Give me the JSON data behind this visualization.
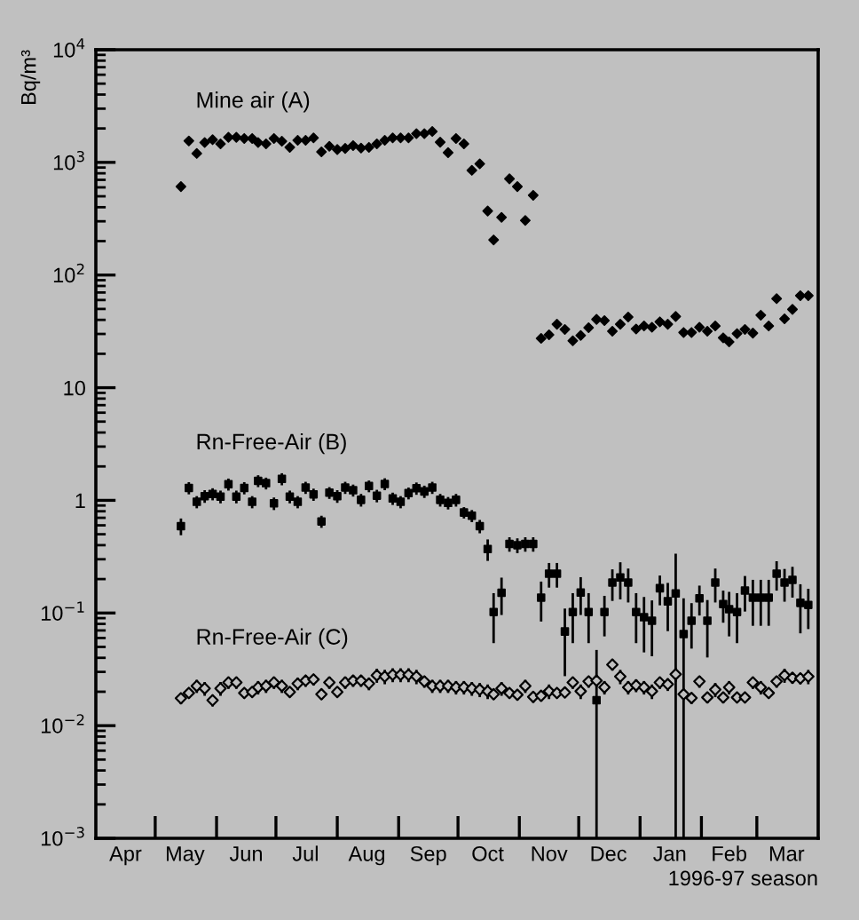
{
  "chart_data": {
    "type": "scatter",
    "xlabel": "1996-97 season",
    "ylabel": "Bq/m³",
    "log": "y",
    "x": [
      "1996-05-14",
      "1996-05-18",
      "1996-05-22",
      "1996-05-26",
      "1996-05-30",
      "1996-06-03",
      "1996-06-07",
      "1996-06-11",
      "1996-06-15",
      "1996-06-19",
      "1996-06-22",
      "1996-06-26",
      "1996-06-30",
      "1996-07-04",
      "1996-07-08",
      "1996-07-12",
      "1996-07-16",
      "1996-07-20",
      "1996-07-24",
      "1996-07-28",
      "1996-08-01",
      "1996-08-05",
      "1996-08-09",
      "1996-08-13",
      "1996-08-17",
      "1996-08-21",
      "1996-08-25",
      "1996-08-29",
      "1996-09-02",
      "1996-09-06",
      "1996-09-10",
      "1996-09-14",
      "1996-09-18",
      "1996-09-22",
      "1996-09-26",
      "1996-09-30",
      "1996-10-04",
      "1996-10-08",
      "1996-10-12",
      "1996-10-16",
      "1996-10-19",
      "1996-10-23",
      "1996-10-27",
      "1996-10-31",
      "1996-11-04",
      "1996-11-08",
      "1996-11-12",
      "1996-11-16",
      "1996-11-20",
      "1996-11-24",
      "1996-11-28",
      "1996-12-02",
      "1996-12-06",
      "1996-12-10",
      "1996-12-14",
      "1996-12-18",
      "1996-12-22",
      "1996-12-26",
      "1996-12-30",
      "1997-01-03",
      "1997-01-07",
      "1997-01-11",
      "1997-01-15",
      "1997-01-19",
      "1997-01-23",
      "1997-01-27",
      "1997-01-31",
      "1997-02-04",
      "1997-02-08",
      "1997-02-12",
      "1997-02-15",
      "1997-02-19",
      "1997-02-23",
      "1997-02-27",
      "1997-03-03",
      "1997-03-07",
      "1997-03-11",
      "1997-03-15",
      "1997-03-19",
      "1997-03-23",
      "1997-03-27"
    ],
    "xlim": [
      "1996-04-01",
      "1997-04-01"
    ],
    "xticks": [
      {
        "value": "1996-04-16",
        "label": "Apr"
      },
      {
        "value": "1996-05-16",
        "label": "May"
      },
      {
        "value": "1996-06-16",
        "label": "Jun"
      },
      {
        "value": "1996-07-16",
        "label": "Jul"
      },
      {
        "value": "1996-08-16",
        "label": "Aug"
      },
      {
        "value": "1996-09-16",
        "label": "Sep"
      },
      {
        "value": "1996-10-16",
        "label": "Oct"
      },
      {
        "value": "1996-11-16",
        "label": "Nov"
      },
      {
        "value": "1996-12-16",
        "label": "Dec"
      },
      {
        "value": "1997-01-16",
        "label": "Jan"
      },
      {
        "value": "1997-02-15",
        "label": "Feb"
      },
      {
        "value": "1997-03-16",
        "label": "Mar"
      },
      {
        "value": "1996-05-01",
        "label": null
      },
      {
        "value": "1996-06-01",
        "label": null
      },
      {
        "value": "1996-07-01",
        "label": null
      },
      {
        "value": "1996-08-01",
        "label": null
      },
      {
        "value": "1996-09-01",
        "label": null
      },
      {
        "value": "1996-10-01",
        "label": null
      },
      {
        "value": "1996-11-01",
        "label": null
      },
      {
        "value": "1996-12-01",
        "label": null
      },
      {
        "value": "1997-01-01",
        "label": null
      },
      {
        "value": "1997-02-01",
        "label": null
      },
      {
        "value": "1997-03-01",
        "label": null
      }
    ],
    "ylim": [
      0.001,
      10000
    ],
    "yticks": [
      {
        "value": 0.001,
        "label": "10$^{−3}$"
      },
      {
        "value": 0.01,
        "label": "10$^{−2}$"
      },
      {
        "value": 0.1,
        "label": "10$^{−1}$"
      },
      1,
      10,
      {
        "value": 100,
        "label": "10$^{2}$"
      },
      {
        "value": 1000,
        "label": "10$^{3}$"
      },
      {
        "value": 10000,
        "label": "10$^{4}$"
      },
      {
        "value": 0.002,
        "label": null
      },
      {
        "value": 0.003,
        "label": null
      },
      {
        "value": 0.004,
        "label": null
      },
      {
        "value": 0.005,
        "label": null
      },
      {
        "value": 0.006,
        "label": null
      },
      {
        "value": 0.007,
        "label": null
      },
      {
        "value": 0.008,
        "label": null
      },
      {
        "value": 0.009,
        "label": null
      },
      {
        "value": 0.02,
        "label": null
      },
      {
        "value": 0.03,
        "label": null
      },
      {
        "value": 0.04,
        "label": null
      },
      {
        "value": 0.05,
        "label": null
      },
      {
        "value": 0.06,
        "label": null
      },
      {
        "value": 0.07,
        "label": null
      },
      {
        "value": 0.08,
        "label": null
      },
      {
        "value": 0.09,
        "label": null
      },
      {
        "value": 0.2,
        "label": null
      },
      {
        "value": 0.3,
        "label": null
      },
      {
        "value": 0.4,
        "label": null
      },
      {
        "value": 0.5,
        "label": null
      },
      {
        "value": 0.6,
        "label": null
      },
      {
        "value": 0.7,
        "label": null
      },
      {
        "value": 0.8,
        "label": null
      },
      {
        "value": 0.9,
        "label": null
      },
      {
        "value": 2,
        "label": null
      },
      {
        "value": 3,
        "label": null
      },
      {
        "value": 4,
        "label": null
      },
      {
        "value": 5,
        "label": null
      },
      {
        "value": 6,
        "label": null
      },
      {
        "value": 7,
        "label": null
      },
      {
        "value": 8,
        "label": null
      },
      {
        "value": 9,
        "label": null
      },
      {
        "value": 20,
        "label": null
      },
      {
        "value": 30,
        "label": null
      },
      {
        "value": 40,
        "label": null
      },
      {
        "value": 50,
        "label": null
      },
      {
        "value": 60,
        "label": null
      },
      {
        "value": 70,
        "label": null
      },
      {
        "value": 80,
        "label": null
      },
      {
        "value": 90,
        "label": null
      },
      {
        "value": 200,
        "label": null
      },
      {
        "value": 300,
        "label": null
      },
      {
        "value": 400,
        "label": null
      },
      {
        "value": 500,
        "label": null
      },
      {
        "value": 600,
        "label": null
      },
      {
        "value": 700,
        "label": null
      },
      {
        "value": 800,
        "label": null
      },
      {
        "value": 900,
        "label": null
      },
      {
        "value": 2000,
        "label": null
      },
      {
        "value": 3000,
        "label": null
      },
      {
        "value": 4000,
        "label": null
      },
      {
        "value": 5000,
        "label": null
      },
      {
        "value": 6000,
        "label": null
      },
      {
        "value": 7000,
        "label": null
      },
      {
        "value": 8000,
        "label": null
      },
      {
        "value": 9000,
        "label": null
      }
    ],
    "series": [
      {
        "name": "Mine air (A)",
        "color": "#000000",
        "marker": "diamond",
        "values": [
          610,
          1550,
          1200,
          1500,
          1590,
          1460,
          1670,
          1670,
          1630,
          1630,
          1500,
          1460,
          1630,
          1540,
          1360,
          1570,
          1570,
          1650,
          1240,
          1390,
          1300,
          1330,
          1410,
          1340,
          1360,
          1460,
          1570,
          1650,
          1650,
          1650,
          1800,
          1800,
          1880,
          1510,
          1220,
          1630,
          1460,
          850,
          970,
          370,
          205,
          325,
          715,
          610,
          305,
          510,
          27.4,
          29.5,
          36.6,
          32.9,
          26.1,
          29.1,
          34.1,
          40.4,
          39.4,
          31.7,
          36.6,
          42.4,
          33.2,
          35.3,
          34.4,
          38.4,
          36.6,
          42.9,
          30.9,
          30.9,
          34.4,
          31.7,
          35.3,
          27.7,
          25.5,
          30.2,
          32.9,
          30.5,
          44.0,
          35.3,
          61.7,
          40.9,
          49.6,
          65.6,
          65.6
        ]
      },
      {
        "name": "Rn-Free-Air (B)",
        "color": "#000000",
        "marker": "square",
        "values": [
          0.59,
          1.29,
          0.97,
          1.09,
          1.14,
          1.08,
          1.39,
          1.08,
          1.29,
          0.97,
          1.49,
          1.42,
          0.94,
          1.55,
          1.08,
          0.97,
          1.3,
          1.13,
          0.65,
          1.17,
          1.09,
          1.3,
          1.23,
          1.01,
          1.34,
          1.1,
          1.4,
          1.04,
          0.97,
          1.16,
          1.28,
          1.2,
          1.3,
          1.01,
          0.95,
          1.01,
          0.78,
          0.73,
          0.59,
          0.37,
          0.102,
          0.151,
          0.41,
          0.4,
          0.41,
          0.41,
          0.137,
          0.223,
          0.223,
          0.0685,
          0.102,
          0.152,
          0.102,
          0.0168,
          0.102,
          0.186,
          0.207,
          0.186,
          0.102,
          0.0917,
          0.0853,
          0.166,
          0.127,
          0.149,
          0.065,
          0.0853,
          0.135,
          0.0853,
          0.186,
          0.12,
          0.108,
          0.102,
          0.158,
          0.137,
          0.137,
          0.137,
          0.223,
          0.186,
          0.197,
          0.123,
          0.118
        ],
        "errors": [
          0.1,
          0.16,
          0.12,
          0.14,
          0.14,
          0.14,
          0.17,
          0.14,
          0.16,
          0.12,
          0.18,
          0.17,
          0.12,
          0.19,
          0.14,
          0.12,
          0.16,
          0.14,
          0.08,
          0.14,
          0.14,
          0.16,
          0.15,
          0.13,
          0.16,
          0.14,
          0.17,
          0.13,
          0.12,
          0.14,
          0.16,
          0.15,
          0.16,
          0.13,
          0.12,
          0.13,
          0.09,
          0.09,
          0.08,
          0.08,
          0.048,
          0.055,
          0.06,
          0.06,
          0.06,
          0.06,
          0.053,
          0.055,
          0.055,
          0.041,
          0.048,
          0.056,
          0.048,
          [
            0.001,
            0.047
          ],
          0.04,
          0.058,
          0.075,
          0.062,
          0.048,
          0.047,
          0.044,
          0.049,
          0.058,
          [
            0.001,
            0.336
          ],
          [
            0.001,
            0.135
          ],
          0.037,
          0.04,
          0.045,
          0.062,
          0.038,
          0.046,
          0.048,
          0.055,
          0.06,
          0.06,
          0.06,
          0.065,
          0.06,
          0.06,
          0.057,
          0.046
        ]
      },
      {
        "name": "Rn-Free-Air (C)",
        "color": "#000000",
        "marker": "diamond",
        "values": [
          0.0175,
          0.0195,
          0.0225,
          0.0214,
          0.0168,
          0.0214,
          0.0242,
          0.0242,
          0.0195,
          0.0199,
          0.0219,
          0.0225,
          0.0242,
          0.0225,
          0.0199,
          0.0236,
          0.0251,
          0.0257,
          0.019,
          0.0242,
          0.0199,
          0.0242,
          0.0251,
          0.0251,
          0.0236,
          0.028,
          0.0273,
          0.0283,
          0.0283,
          0.0283,
          0.0273,
          0.0247,
          0.0225,
          0.0225,
          0.0225,
          0.0219,
          0.0219,
          0.0214,
          0.0209,
          0.0202,
          0.019,
          0.0214,
          0.0195,
          0.0188,
          0.0225,
          0.018,
          0.0184,
          0.0202,
          0.0195,
          0.0197,
          0.0242,
          0.0202,
          0.0247,
          0.0251,
          0.0219,
          0.0348,
          0.0273,
          0.0219,
          0.0228,
          0.0219,
          0.0202,
          0.0242,
          0.0233,
          0.0286,
          0.019,
          0.0176,
          0.0247,
          0.0178,
          0.0209,
          0.0178,
          0.0219,
          0.0178,
          0.0178,
          0.0242,
          0.0219,
          0.0195,
          0.0247,
          0.028,
          0.0266,
          0.0263,
          0.0273
        ],
        "errors": [
          0.002,
          0.002,
          0.003,
          0.003,
          0.002,
          0.003,
          0.003,
          0.003,
          0.002,
          0.002,
          0.003,
          0.003,
          0.003,
          0.003,
          0.002,
          0.003,
          0.003,
          0.003,
          0.002,
          0.003,
          0.002,
          0.003,
          0.003,
          0.003,
          0.003,
          0.004,
          0.004,
          0.004,
          0.004,
          0.004,
          0.004,
          0.003,
          0.003,
          0.003,
          0.003,
          0.003,
          0.003,
          0.003,
          0.003,
          0.003,
          0.002,
          0.003,
          0.002,
          0.002,
          0.003,
          0.002,
          0.002,
          0.003,
          0.002,
          0.002,
          0.003,
          0.003,
          0.003,
          0.003,
          0.003,
          0.004,
          0.004,
          0.003,
          0.003,
          0.003,
          0.003,
          0.003,
          0.003,
          0.004,
          0.002,
          0.002,
          0.003,
          0.002,
          0.003,
          0.002,
          0.003,
          0.002,
          0.002,
          0.003,
          0.003,
          0.002,
          0.003,
          0.004,
          0.003,
          0.003,
          0.004
        ]
      }
    ]
  }
}
